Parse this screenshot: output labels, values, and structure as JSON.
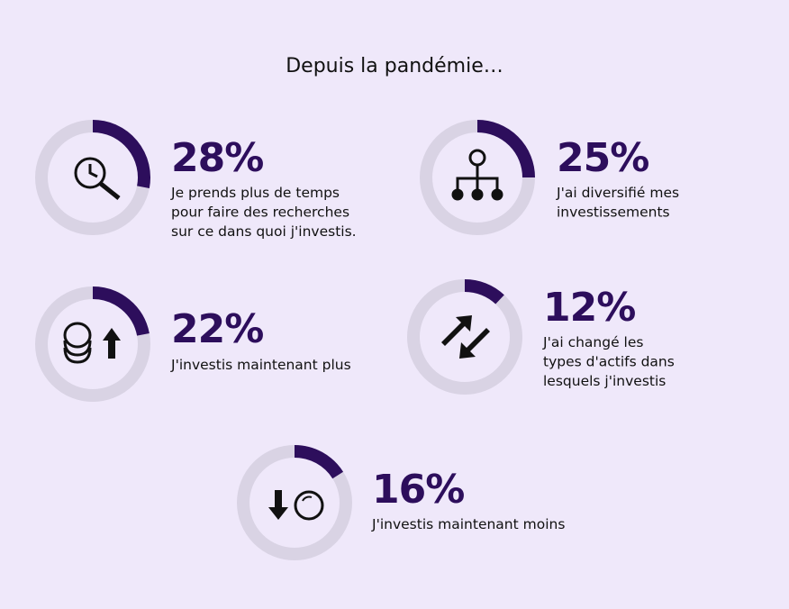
{
  "title": "Depuis la pandémie…",
  "chart_data": [
    {
      "type": "donut",
      "values": [
        28
      ],
      "value_labels": [
        "28%"
      ],
      "caption": [
        "Je prends plus de temps",
        "pour faire des recherches",
        "sur ce dans quoi j'investis."
      ]
    },
    {
      "type": "donut",
      "values": [
        25
      ],
      "value_labels": [
        "25%"
      ],
      "caption": [
        "J'ai diversifié mes",
        "investissements"
      ]
    },
    {
      "type": "donut",
      "values": [
        22
      ],
      "value_labels": [
        "22%"
      ],
      "caption": [
        "J'investis maintenant plus"
      ]
    },
    {
      "type": "donut",
      "values": [
        12
      ],
      "value_labels": [
        "12%"
      ],
      "caption": [
        "J'ai changé les",
        "types d'actifs dans",
        "lesquels j'investis"
      ]
    },
    {
      "type": "donut",
      "values": [
        16
      ],
      "value_labels": [
        "16%"
      ],
      "caption": [
        "J'investis maintenant moins"
      ]
    }
  ]
}
